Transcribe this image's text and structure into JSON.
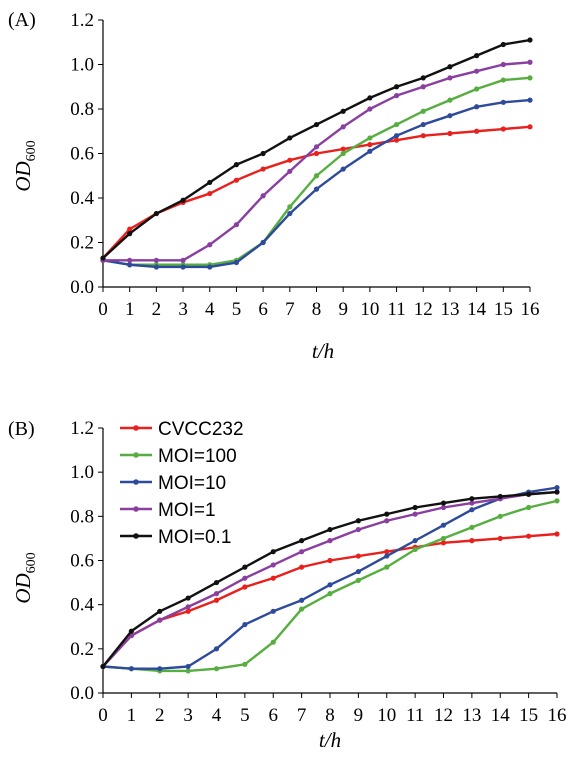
{
  "chart_data": [
    {
      "type": "line",
      "panel_label": "(A)",
      "xlabel": "t/h",
      "ylabel": "OD600",
      "x": [
        0,
        1,
        2,
        3,
        4,
        5,
        6,
        7,
        8,
        9,
        10,
        11,
        12,
        13,
        14,
        15,
        16
      ],
      "xlim": [
        0,
        16
      ],
      "ylim": [
        0,
        1.2
      ],
      "yticks": [
        "0.0",
        "0.2",
        "0.4",
        "0.6",
        "0.8",
        "1.0",
        "1.2"
      ],
      "grid": false,
      "legend": "none",
      "series": [
        {
          "color": "#e8211c",
          "values": [
            0.13,
            0.26,
            0.33,
            0.38,
            0.42,
            0.48,
            0.53,
            0.57,
            0.6,
            0.62,
            0.64,
            0.66,
            0.68,
            0.69,
            0.7,
            0.71,
            0.72
          ]
        },
        {
          "color": "#56ae40",
          "values": [
            0.12,
            0.1,
            0.1,
            0.1,
            0.1,
            0.12,
            0.2,
            0.36,
            0.5,
            0.6,
            0.67,
            0.73,
            0.79,
            0.84,
            0.89,
            0.93,
            0.94
          ]
        },
        {
          "color": "#2e4b9b",
          "values": [
            0.12,
            0.1,
            0.09,
            0.09,
            0.09,
            0.11,
            0.2,
            0.33,
            0.44,
            0.53,
            0.61,
            0.68,
            0.73,
            0.77,
            0.81,
            0.83,
            0.84
          ]
        },
        {
          "color": "#8a3fa0",
          "values": [
            0.12,
            0.12,
            0.12,
            0.12,
            0.19,
            0.28,
            0.41,
            0.52,
            0.63,
            0.72,
            0.8,
            0.86,
            0.9,
            0.94,
            0.97,
            1.0,
            1.01
          ]
        },
        {
          "color": "#111111",
          "values": [
            0.13,
            0.24,
            0.33,
            0.39,
            0.47,
            0.55,
            0.6,
            0.67,
            0.73,
            0.79,
            0.85,
            0.9,
            0.94,
            0.99,
            1.04,
            1.09,
            1.11
          ]
        }
      ]
    },
    {
      "type": "line",
      "panel_label": "(B)",
      "xlabel": "t/h",
      "ylabel": "OD600",
      "x": [
        0,
        1,
        2,
        3,
        4,
        5,
        6,
        7,
        8,
        9,
        10,
        11,
        12,
        13,
        14,
        15,
        16
      ],
      "xlim": [
        0,
        16
      ],
      "ylim": [
        0,
        1.2
      ],
      "yticks": [
        "0.0",
        "0.2",
        "0.4",
        "0.6",
        "0.8",
        "1.0",
        "1.2"
      ],
      "grid": false,
      "legend": "top-left",
      "series": [
        {
          "name": "CVCC232",
          "color": "#e8211c",
          "values": [
            0.12,
            0.26,
            0.33,
            0.37,
            0.42,
            0.48,
            0.52,
            0.57,
            0.6,
            0.62,
            0.64,
            0.66,
            0.68,
            0.69,
            0.7,
            0.71,
            0.72
          ]
        },
        {
          "name": "MOI=100",
          "color": "#56ae40",
          "values": [
            0.12,
            0.11,
            0.1,
            0.1,
            0.11,
            0.13,
            0.23,
            0.38,
            0.45,
            0.51,
            0.57,
            0.65,
            0.7,
            0.75,
            0.8,
            0.84,
            0.87
          ]
        },
        {
          "name": "MOI=10",
          "color": "#2e4b9b",
          "values": [
            0.12,
            0.11,
            0.11,
            0.12,
            0.2,
            0.31,
            0.37,
            0.42,
            0.49,
            0.55,
            0.62,
            0.69,
            0.76,
            0.83,
            0.88,
            0.91,
            0.93
          ]
        },
        {
          "name": "MOI=1",
          "color": "#8a3fa0",
          "values": [
            0.12,
            0.26,
            0.33,
            0.39,
            0.45,
            0.52,
            0.58,
            0.64,
            0.69,
            0.74,
            0.78,
            0.81,
            0.84,
            0.86,
            0.88,
            0.9,
            0.91
          ]
        },
        {
          "name": "MOI=0.1",
          "color": "#111111",
          "values": [
            0.12,
            0.28,
            0.37,
            0.43,
            0.5,
            0.57,
            0.64,
            0.69,
            0.74,
            0.78,
            0.81,
            0.84,
            0.86,
            0.88,
            0.89,
            0.9,
            0.91
          ]
        }
      ]
    }
  ]
}
